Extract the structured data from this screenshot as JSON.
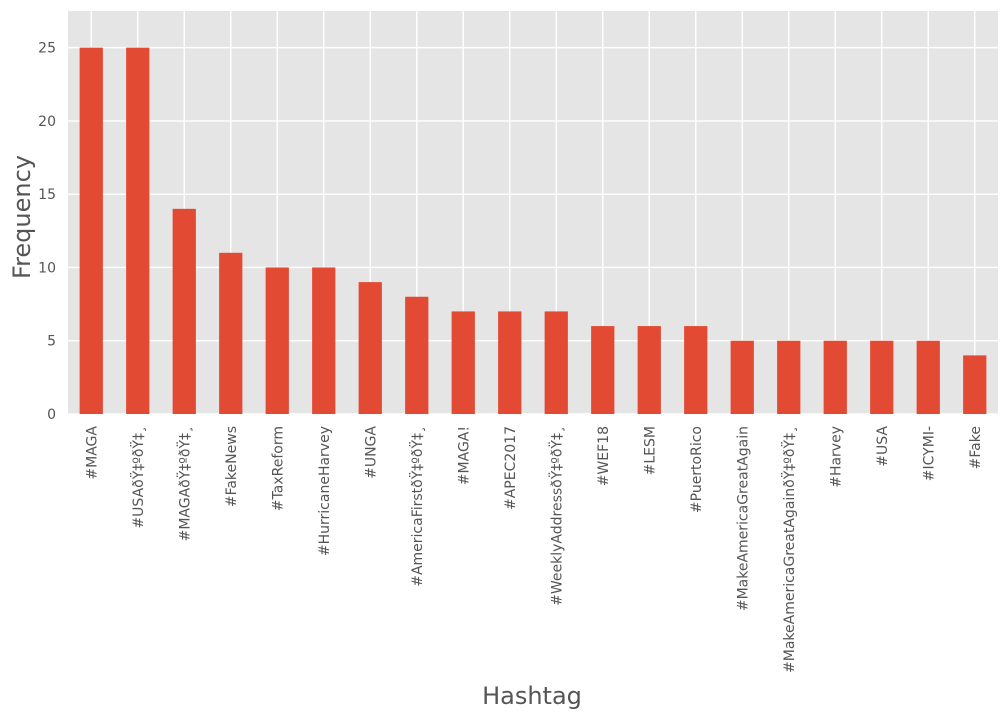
{
  "chart_data": {
    "type": "bar",
    "categories": [
      "#MAGA",
      "#USAðŸ‡ºðŸ‡¸",
      "#MAGAðŸ‡ºðŸ‡¸",
      "#FakeNews",
      "#TaxReform",
      "#HurricaneHarvey",
      "#UNGA",
      "#AmericaFirstðŸ‡ºðŸ‡¸",
      "#MAGA!",
      "#APEC2017",
      "#WeeklyAddressðŸ‡ºðŸ‡¸",
      "#WEF18",
      "#LESM",
      "#PuertoRico",
      "#MakeAmericaGreatAgain",
      "#MakeAmericaGreatAgainðŸ‡ºðŸ‡¸",
      "#Harvey",
      "#USA",
      "#ICYMI-",
      "#Fake"
    ],
    "category_display": [
      "#MAGA",
      "#USAðŸ‡ºðŸ‡¸",
      "#MAGAðŸ‡ºðŸ‡¸",
      "#FakeNews",
      "#TaxReform",
      "#HurricaneHarvey",
      "#UNGA",
      "#AmericaFirstðŸ‡ºðŸ‡¸",
      "#MAGA!",
      "#APEC2017",
      "#WeeklyAddressðŸ‡ºðŸ‡¸",
      "#WEF18",
      "#LESM",
      "#PuertoRico",
      "#MakeAmericaGreatAgain",
      "#MakeAmericaGreatAgainðŸ‡ºðŸ‡¸",
      "#Harvey",
      "#USA",
      "#ICYMI-",
      "#Fake"
    ],
    "values": [
      25,
      25,
      14,
      11,
      10,
      10,
      9,
      8,
      7,
      7,
      7,
      6,
      6,
      6,
      5,
      5,
      5,
      5,
      5,
      4
    ],
    "title": "",
    "xlabel": "Hashtag",
    "ylabel": "Frequency",
    "ylim": [
      0,
      27.5
    ],
    "yticks": [
      0,
      5,
      10,
      15,
      20,
      25
    ],
    "grid": true,
    "legend": "none",
    "colors": {
      "bar": "#E24A33",
      "plot_background": "#E5E5E5",
      "grid": "#FFFFFF",
      "text": "#555555"
    }
  }
}
